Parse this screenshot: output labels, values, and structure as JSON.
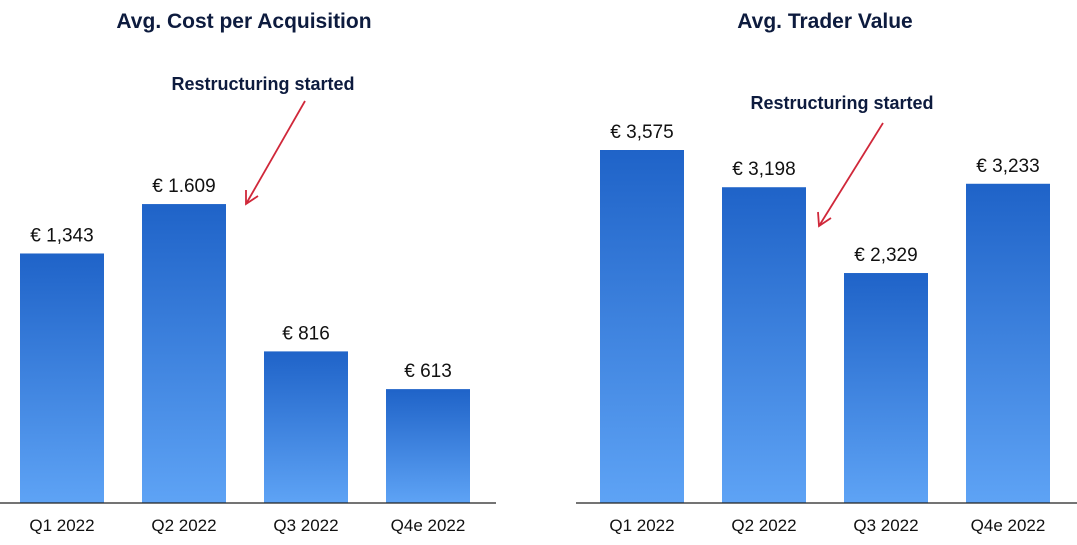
{
  "colors": {
    "bar_top": "#1f63c8",
    "bar_bottom": "#5ea3f5",
    "arrow": "#d0283a",
    "text": "#0d1b3e"
  },
  "chart_data": [
    {
      "type": "bar",
      "title": "Avg. Cost per Acquisition",
      "annotation": "Restructuring started",
      "categories": [
        "Q1 2022",
        "Q2 2022",
        "Q3 2022",
        "Q4e 2022"
      ],
      "values": [
        1343,
        1609,
        816,
        613
      ],
      "value_labels": [
        "€ 1,343",
        "€ 1.609",
        "€ 816",
        "€ 613"
      ],
      "ylim": [
        0,
        1900
      ],
      "grid": false
    },
    {
      "type": "bar",
      "title": "Avg. Trader Value",
      "annotation": "Restructuring started",
      "categories": [
        "Q1 2022",
        "Q2 2022",
        "Q3 2022",
        "Q4e 2022"
      ],
      "values": [
        3575,
        3198,
        2329,
        3233
      ],
      "value_labels": [
        "€ 3,575",
        "€ 3,198",
        "€ 2,329",
        "€ 3,233"
      ],
      "ylim": [
        0,
        3575
      ],
      "grid": false
    }
  ]
}
